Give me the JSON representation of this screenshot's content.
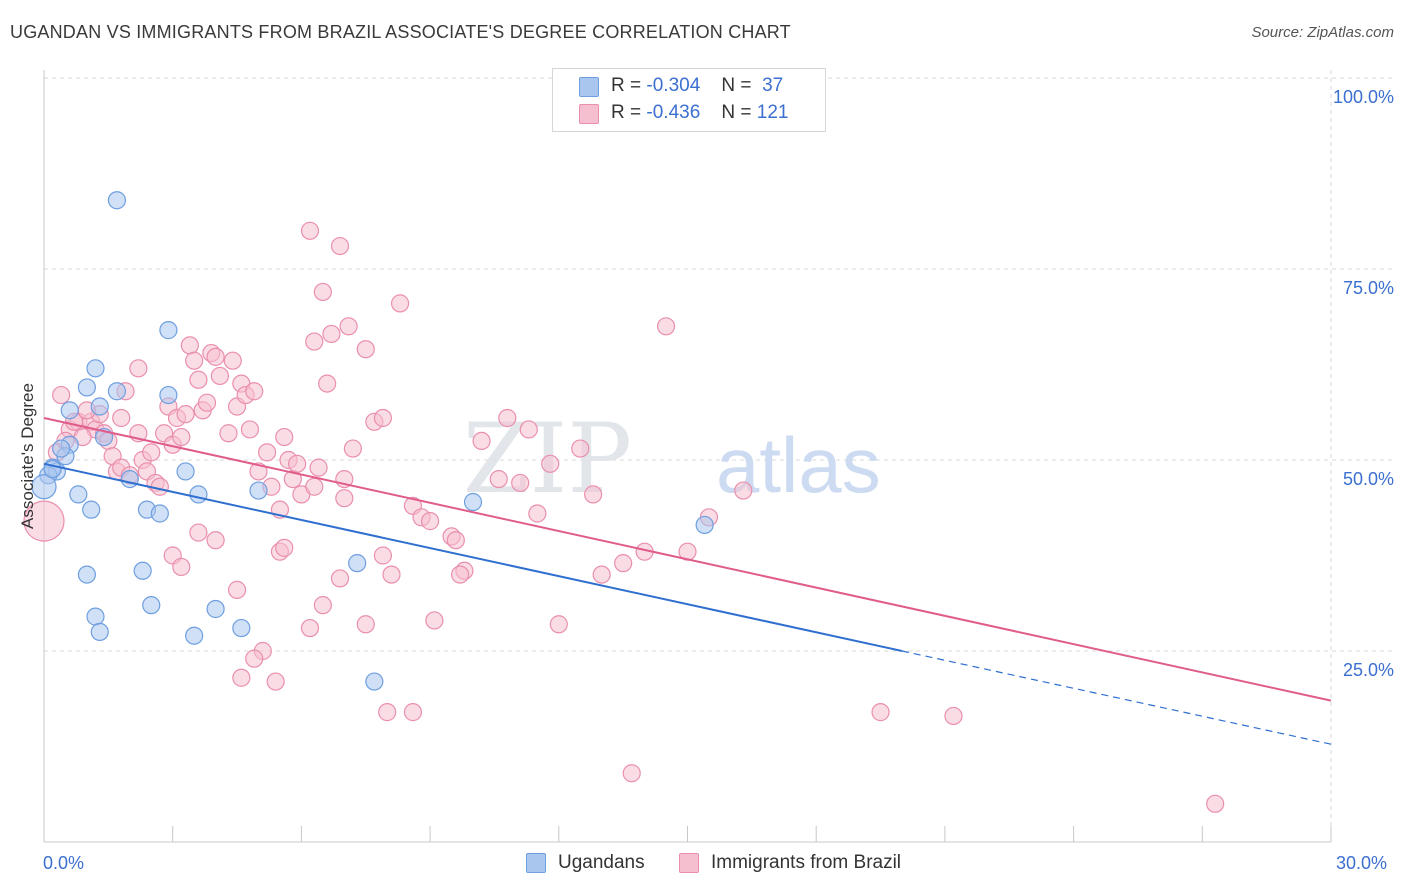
{
  "title": "UGANDAN VS IMMIGRANTS FROM BRAZIL ASSOCIATE'S DEGREE CORRELATION CHART",
  "source": "Source: ZipAtlas.com",
  "watermark": {
    "zip": "ZIP",
    "atlas": "atlas"
  },
  "legend_top": {
    "rows": [
      {
        "r_label": "R =",
        "r_value": "-0.304",
        "n_label": "N =",
        "n_value": "37"
      },
      {
        "r_label": "R =",
        "r_value": "-0.436",
        "n_label": "N =",
        "n_value": "121"
      }
    ]
  },
  "colors": {
    "blue_fill": "#a9c7ee",
    "blue_stroke": "#6f9fe0",
    "blue_line": "#2f6fd0",
    "pink_fill": "#f6bfd0",
    "pink_stroke": "#ea8fad",
    "pink_line": "#e05c8b",
    "tick_text": "#3b6fd0",
    "grid": "#d9d9d9"
  },
  "chart_data": {
    "type": "scatter",
    "title": "UGANDAN VS IMMIGRANTS FROM BRAZIL ASSOCIATE'S DEGREE CORRELATION CHART",
    "xlabel": "",
    "ylabel": "Associate's Degree",
    "xlim": [
      0,
      30
    ],
    "ylim": [
      0,
      105
    ],
    "x_tick_labels": [
      "0.0%",
      "30.0%"
    ],
    "y_ticks": [
      25,
      50,
      75,
      100
    ],
    "y_tick_labels": [
      "25.0%",
      "50.0%",
      "75.0%",
      "100.0%"
    ],
    "grid": true,
    "legend_position": "bottom",
    "series": [
      {
        "name": "Ugandans",
        "color": "#6f9fe0",
        "r": -0.304,
        "n": 37,
        "trend": {
          "x0": 0.0,
          "y0": 49.5,
          "x1": 20.0,
          "y1": 25.0,
          "x_dash_end": 30.0,
          "y_dash_end": 12.8
        },
        "points": [
          [
            1.7,
            84.0
          ],
          [
            2.9,
            67.0
          ],
          [
            1.2,
            62.0
          ],
          [
            1.0,
            59.5
          ],
          [
            1.7,
            59.0
          ],
          [
            2.9,
            58.5
          ],
          [
            1.3,
            57.0
          ],
          [
            0.6,
            56.5
          ],
          [
            0.6,
            52.0
          ],
          [
            1.4,
            53.0
          ],
          [
            0.5,
            50.5
          ],
          [
            0.2,
            49.0
          ],
          [
            0.3,
            48.5
          ],
          [
            0.1,
            48.0
          ],
          [
            0.0,
            46.5
          ],
          [
            2.0,
            47.5
          ],
          [
            3.3,
            48.5
          ],
          [
            3.6,
            45.5
          ],
          [
            5.0,
            46.0
          ],
          [
            0.8,
            45.5
          ],
          [
            1.1,
            43.5
          ],
          [
            2.4,
            43.5
          ],
          [
            2.7,
            43.0
          ],
          [
            10.0,
            44.5
          ],
          [
            15.4,
            41.5
          ],
          [
            7.3,
            36.5
          ],
          [
            2.3,
            35.5
          ],
          [
            1.0,
            35.0
          ],
          [
            2.5,
            31.0
          ],
          [
            1.2,
            29.5
          ],
          [
            4.0,
            30.5
          ],
          [
            1.3,
            27.5
          ],
          [
            3.5,
            27.0
          ],
          [
            4.6,
            28.0
          ],
          [
            7.7,
            21.0
          ],
          [
            0.2,
            48.8
          ],
          [
            0.4,
            51.5
          ]
        ]
      },
      {
        "name": "Immigrants from Brazil",
        "color": "#ea8fad",
        "r": -0.436,
        "n": 121,
        "trend": {
          "x0": 0.0,
          "y0": 55.5,
          "x1": 30.0,
          "y1": 18.5
        },
        "points": [
          [
            0.0,
            42.0
          ],
          [
            0.4,
            58.5
          ],
          [
            0.6,
            54.0
          ],
          [
            0.8,
            55.0
          ],
          [
            1.1,
            55.0
          ],
          [
            1.2,
            54.0
          ],
          [
            1.3,
            56.0
          ],
          [
            1.4,
            53.5
          ],
          [
            1.5,
            52.5
          ],
          [
            1.6,
            50.5
          ],
          [
            1.7,
            48.5
          ],
          [
            1.8,
            49.0
          ],
          [
            2.0,
            48.0
          ],
          [
            2.2,
            53.5
          ],
          [
            2.3,
            50.0
          ],
          [
            2.4,
            48.5
          ],
          [
            2.5,
            51.0
          ],
          [
            2.6,
            47.0
          ],
          [
            2.7,
            46.5
          ],
          [
            2.8,
            53.5
          ],
          [
            2.9,
            57.0
          ],
          [
            3.0,
            52.0
          ],
          [
            3.1,
            55.5
          ],
          [
            3.2,
            53.0
          ],
          [
            3.3,
            56.0
          ],
          [
            3.4,
            65.0
          ],
          [
            3.5,
            63.0
          ],
          [
            3.6,
            60.5
          ],
          [
            3.7,
            56.5
          ],
          [
            3.8,
            57.5
          ],
          [
            3.9,
            64.0
          ],
          [
            4.0,
            63.5
          ],
          [
            4.1,
            61.0
          ],
          [
            4.3,
            53.5
          ],
          [
            4.4,
            63.0
          ],
          [
            4.5,
            57.0
          ],
          [
            4.6,
            60.0
          ],
          [
            4.7,
            58.5
          ],
          [
            4.8,
            54.0
          ],
          [
            4.9,
            59.0
          ],
          [
            5.0,
            48.5
          ],
          [
            5.2,
            51.0
          ],
          [
            5.3,
            46.5
          ],
          [
            5.5,
            43.5
          ],
          [
            5.6,
            53.0
          ],
          [
            5.7,
            50.0
          ],
          [
            5.8,
            47.5
          ],
          [
            5.9,
            49.5
          ],
          [
            6.0,
            45.5
          ],
          [
            6.2,
            80.0
          ],
          [
            6.3,
            65.5
          ],
          [
            6.5,
            72.0
          ],
          [
            6.6,
            60.0
          ],
          [
            6.7,
            66.5
          ],
          [
            6.9,
            78.0
          ],
          [
            7.0,
            47.5
          ],
          [
            7.1,
            67.5
          ],
          [
            7.2,
            51.5
          ],
          [
            7.5,
            64.5
          ],
          [
            7.7,
            55.0
          ],
          [
            7.9,
            55.5
          ],
          [
            8.1,
            35.0
          ],
          [
            8.3,
            70.5
          ],
          [
            8.6,
            44.0
          ],
          [
            8.8,
            42.5
          ],
          [
            9.0,
            42.0
          ],
          [
            9.5,
            40.0
          ],
          [
            9.6,
            39.5
          ],
          [
            9.8,
            35.5
          ],
          [
            10.2,
            52.5
          ],
          [
            10.6,
            47.5
          ],
          [
            11.1,
            47.0
          ],
          [
            11.3,
            54.0
          ],
          [
            11.5,
            43.0
          ],
          [
            11.8,
            49.5
          ],
          [
            12.5,
            51.5
          ],
          [
            12.8,
            45.5
          ],
          [
            13.0,
            35.0
          ],
          [
            13.5,
            36.5
          ],
          [
            14.0,
            38.0
          ],
          [
            14.5,
            67.5
          ],
          [
            15.0,
            38.0
          ],
          [
            15.5,
            42.5
          ],
          [
            16.3,
            46.0
          ],
          [
            19.5,
            17.0
          ],
          [
            21.2,
            16.5
          ],
          [
            27.3,
            5.0
          ],
          [
            13.7,
            9.0
          ],
          [
            12.0,
            28.5
          ],
          [
            8.0,
            17.0
          ],
          [
            7.9,
            37.5
          ],
          [
            7.5,
            28.5
          ],
          [
            6.9,
            34.5
          ],
          [
            6.5,
            31.0
          ],
          [
            5.5,
            38.0
          ],
          [
            5.4,
            21.0
          ],
          [
            5.1,
            25.0
          ],
          [
            4.9,
            24.0
          ],
          [
            4.6,
            21.5
          ],
          [
            4.5,
            33.0
          ],
          [
            4.0,
            39.5
          ],
          [
            3.6,
            40.5
          ],
          [
            3.0,
            37.5
          ],
          [
            2.2,
            62.0
          ],
          [
            1.9,
            59.0
          ],
          [
            0.7,
            55.0
          ],
          [
            0.9,
            53.0
          ],
          [
            0.3,
            51.0
          ],
          [
            0.5,
            52.5
          ],
          [
            1.0,
            56.5
          ],
          [
            6.2,
            28.0
          ],
          [
            8.6,
            17.0
          ],
          [
            9.1,
            29.0
          ],
          [
            7.0,
            45.0
          ],
          [
            6.4,
            49.0
          ],
          [
            5.6,
            38.5
          ],
          [
            6.3,
            46.5
          ],
          [
            9.7,
            35.0
          ],
          [
            10.8,
            55.5
          ],
          [
            3.2,
            36.0
          ],
          [
            1.8,
            55.5
          ]
        ]
      }
    ]
  }
}
